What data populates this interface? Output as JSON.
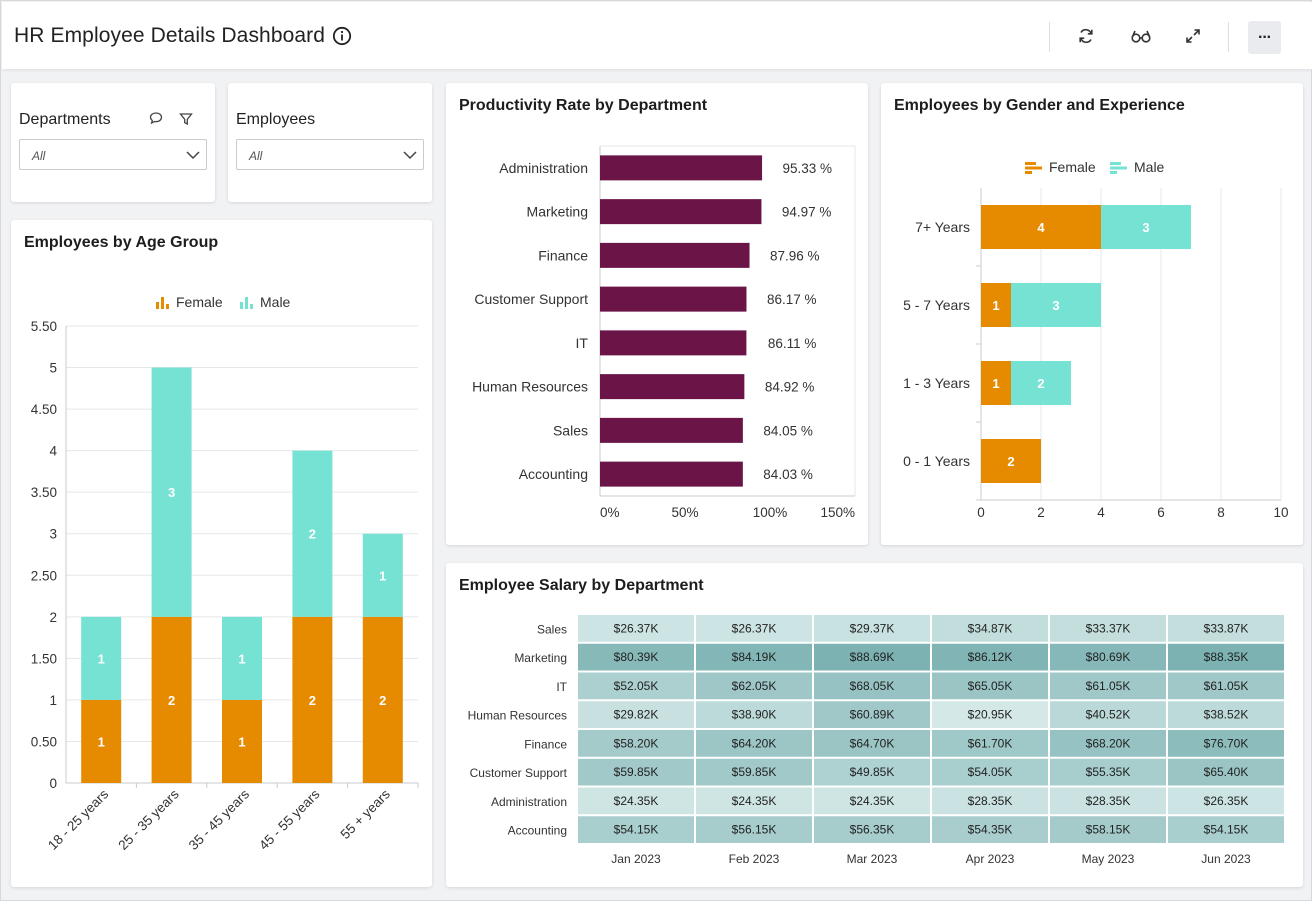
{
  "header": {
    "title": "HR Employee Details Dashboard",
    "icons": [
      "info-icon",
      "refresh-icon",
      "glasses-icon",
      "expand-icon",
      "more-icon"
    ],
    "more_label": "···"
  },
  "filters": {
    "departments": {
      "title": "Departments",
      "value": "All"
    },
    "employees": {
      "title": "Employees",
      "value": "All"
    }
  },
  "colors": {
    "female": "#E68A00",
    "male": "#75E2D3",
    "bar": "#6B1447",
    "heat_low": "#D3E8E7",
    "heat_high": "#7DB2B3"
  },
  "age_chart": {
    "title": "Employees by Age Group",
    "legend": {
      "female": "Female",
      "male": "Male"
    },
    "chart_data": {
      "type": "bar",
      "stacked": true,
      "categories": [
        "18 - 25 years",
        "25 - 35 years",
        "35 - 45 years",
        "45 - 55 years",
        "55 + years"
      ],
      "series": [
        {
          "name": "Female",
          "values": [
            1,
            2,
            1,
            2,
            2
          ]
        },
        {
          "name": "Male",
          "values": [
            1,
            3,
            1,
            2,
            1
          ]
        }
      ],
      "yticks": [
        "0",
        "0.50",
        "1",
        "1.50",
        "2",
        "2.50",
        "3",
        "3.50",
        "4",
        "4.50",
        "5",
        "5.50"
      ],
      "ylim": [
        0,
        5.5
      ],
      "legend": "top-center"
    }
  },
  "productivity_chart": {
    "title": "Productivity Rate by Department",
    "chart_data": {
      "type": "bar",
      "orientation": "horizontal",
      "categories": [
        "Administration",
        "Marketing",
        "Finance",
        "Customer Support",
        "IT",
        "Human Resources",
        "Sales",
        "Accounting"
      ],
      "values": [
        95.33,
        94.97,
        87.96,
        86.17,
        86.11,
        84.92,
        84.05,
        84.03
      ],
      "labels": [
        "95.33 %",
        "94.97 %",
        "87.96 %",
        "86.17 %",
        "86.11 %",
        "84.92 %",
        "84.05 %",
        "84.03 %"
      ],
      "xticks": [
        "0%",
        "50%",
        "100%",
        "150%"
      ],
      "xlim": [
        0,
        150
      ]
    }
  },
  "gender_chart": {
    "title": "Employees by Gender and Experience",
    "legend": {
      "female": "Female",
      "male": "Male"
    },
    "chart_data": {
      "type": "bar",
      "orientation": "horizontal",
      "stacked": true,
      "categories": [
        "7+ Years",
        "5 - 7 Years",
        "1 - 3 Years",
        "0 - 1 Years"
      ],
      "series": [
        {
          "name": "Female",
          "values": [
            4,
            1,
            1,
            2
          ]
        },
        {
          "name": "Male",
          "values": [
            3,
            3,
            2,
            0
          ]
        }
      ],
      "xticks": [
        "0",
        "2",
        "4",
        "6",
        "8",
        "10"
      ],
      "xlim": [
        0,
        10
      ],
      "legend": "top-center"
    }
  },
  "salary_chart": {
    "title": "Employee Salary by Department",
    "chart_data": {
      "type": "heatmap",
      "rows": [
        "Sales",
        "Marketing",
        "IT",
        "Human Resources",
        "Finance",
        "Customer Support",
        "Administration",
        "Accounting"
      ],
      "columns": [
        "Jan 2023",
        "Feb 2023",
        "Mar 2023",
        "Apr 2023",
        "May 2023",
        "Jun 2023"
      ],
      "values": [
        [
          26.37,
          26.37,
          29.37,
          34.87,
          33.37,
          33.87
        ],
        [
          80.39,
          84.19,
          88.69,
          86.12,
          80.69,
          88.35
        ],
        [
          52.05,
          62.05,
          68.05,
          65.05,
          61.05,
          61.05
        ],
        [
          29.82,
          38.9,
          60.89,
          20.95,
          40.52,
          38.52
        ],
        [
          58.2,
          64.2,
          64.7,
          61.7,
          68.2,
          76.7
        ],
        [
          59.85,
          59.85,
          49.85,
          54.05,
          55.35,
          65.4
        ],
        [
          24.35,
          24.35,
          24.35,
          28.35,
          28.35,
          26.35
        ],
        [
          54.15,
          56.15,
          56.35,
          54.35,
          58.15,
          54.15
        ]
      ],
      "labels": [
        [
          "$26.37K",
          "$26.37K",
          "$29.37K",
          "$34.87K",
          "$33.37K",
          "$33.87K"
        ],
        [
          "$80.39K",
          "$84.19K",
          "$88.69K",
          "$86.12K",
          "$80.69K",
          "$88.35K"
        ],
        [
          "$52.05K",
          "$62.05K",
          "$68.05K",
          "$65.05K",
          "$61.05K",
          "$61.05K"
        ],
        [
          "$29.82K",
          "$38.90K",
          "$60.89K",
          "$20.95K",
          "$40.52K",
          "$38.52K"
        ],
        [
          "$58.20K",
          "$64.20K",
          "$64.70K",
          "$61.70K",
          "$68.20K",
          "$76.70K"
        ],
        [
          "$59.85K",
          "$59.85K",
          "$49.85K",
          "$54.05K",
          "$55.35K",
          "$65.40K"
        ],
        [
          "$24.35K",
          "$24.35K",
          "$24.35K",
          "$28.35K",
          "$28.35K",
          "$26.35K"
        ],
        [
          "$54.15K",
          "$56.15K",
          "$56.35K",
          "$54.35K",
          "$58.15K",
          "$54.15K"
        ]
      ]
    }
  }
}
